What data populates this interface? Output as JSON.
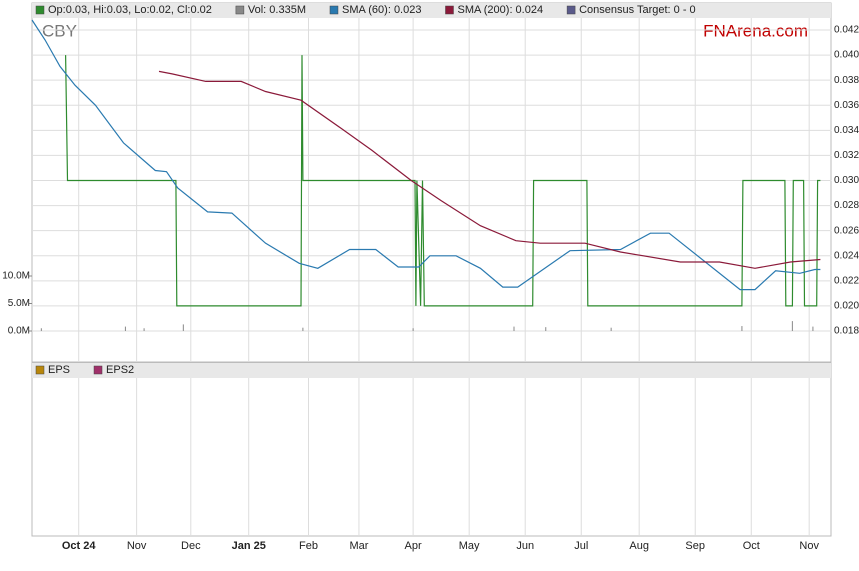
{
  "chart_data": [
    {
      "type": "line",
      "title": "CBY",
      "annotation": "FNArena.com",
      "ylim": [
        0.018,
        0.042
      ],
      "yticks": [
        0.018,
        {
          "value": 0.02,
          "label": "0.020"
        },
        0.022,
        0.024,
        0.026,
        0.028,
        {
          "value": 0.03,
          "label": "0.030"
        },
        0.032,
        0.034,
        0.036,
        0.038,
        {
          "value": 0.04,
          "label": "0.040"
        },
        0.042
      ],
      "y2lim": [
        0,
        10
      ],
      "y2ticks": [
        {
          "value": 0,
          "label": "0.0M"
        },
        {
          "value": 5,
          "label": "5.0M"
        },
        {
          "value": 10,
          "label": "10.0M"
        }
      ],
      "xlim": [
        0,
        428
      ],
      "grid": true,
      "series": [
        {
          "name": "Op:0.03, Hi:0.03, Lo:0.02, Cl:0.02",
          "color": "#2e8b2e",
          "x": [
            18,
            19,
            77,
            77.5,
            144,
            144.5,
            145,
            205,
            205.5,
            206,
            208,
            209,
            210,
            268,
            268.5,
            297,
            297.5,
            380,
            380.5,
            403,
            403.5,
            407,
            407.5,
            413,
            413.5,
            420,
            420.5,
            422
          ],
          "values": [
            0.04,
            0.03,
            0.03,
            0.02,
            0.02,
            0.04,
            0.03,
            0.03,
            0.02,
            0.03,
            0.02,
            0.03,
            0.02,
            0.02,
            0.03,
            0.03,
            0.02,
            0.02,
            0.03,
            0.03,
            0.02,
            0.02,
            0.03,
            0.03,
            0.02,
            0.02,
            0.03,
            0.03
          ]
        },
        {
          "name": "Vol: 0.335M",
          "color": "#888888",
          "axis": "y2",
          "x": [
            5,
            50,
            60,
            81,
            145,
            204,
            258,
            275,
            310,
            380,
            407,
            418
          ],
          "values": [
            0.5,
            0.8,
            0.5,
            1.2,
            0.6,
            0.5,
            0.8,
            0.7,
            0.6,
            0.9,
            1.8,
            0.8
          ]
        },
        {
          "name": "SMA (60): 0.023",
          "color": "#2a7ab0",
          "x": [
            0,
            7,
            15,
            23,
            34,
            49,
            66,
            72,
            78,
            94,
            107,
            125,
            143,
            153,
            170,
            184,
            196,
            207,
            213,
            227,
            240,
            252,
            260,
            288,
            315,
            331,
            341,
            379,
            387,
            398,
            411,
            419,
            422
          ],
          "values": [
            0.0428,
            0.0412,
            0.0391,
            0.0376,
            0.036,
            0.033,
            0.0308,
            0.0307,
            0.0294,
            0.0275,
            0.0274,
            0.025,
            0.0234,
            0.023,
            0.0245,
            0.0245,
            0.0231,
            0.0231,
            0.024,
            0.024,
            0.023,
            0.0215,
            0.0215,
            0.0244,
            0.0245,
            0.0258,
            0.0258,
            0.0213,
            0.0213,
            0.0228,
            0.0226,
            0.0229,
            0.0229
          ]
        },
        {
          "name": "SMA (200): 0.024",
          "color": "#8b1a3a",
          "x": [
            68,
            75,
            93,
            112,
            125,
            144,
            165,
            182,
            203,
            219,
            240,
            259,
            272,
            296,
            315,
            347,
            368,
            387,
            406,
            422
          ],
          "values": [
            0.0387,
            0.0385,
            0.0379,
            0.0379,
            0.0371,
            0.0364,
            0.0342,
            0.0324,
            0.03,
            0.0284,
            0.0264,
            0.0252,
            0.025,
            0.025,
            0.0243,
            0.0235,
            0.0235,
            0.023,
            0.0235,
            0.0237
          ]
        },
        {
          "name": "Consensus Target: 0 - 0",
          "color": "#5a5a8a",
          "x": [],
          "values": []
        }
      ]
    },
    {
      "type": "line",
      "xlim": [
        0,
        428
      ],
      "xticks": [
        {
          "value": 25,
          "label": "Oct 24"
        },
        {
          "value": 56,
          "label": "Nov"
        },
        {
          "value": 85,
          "label": "Dec"
        },
        {
          "value": 116,
          "label": "Jan 25"
        },
        {
          "value": 148,
          "label": "Feb"
        },
        {
          "value": 175,
          "label": "Mar"
        },
        {
          "value": 204,
          "label": "Apr"
        },
        {
          "value": 234,
          "label": "May"
        },
        {
          "value": 264,
          "label": "Jun"
        },
        {
          "value": 294,
          "label": "Jul"
        },
        {
          "value": 325,
          "label": "Aug"
        },
        {
          "value": 355,
          "label": "Sep"
        },
        {
          "value": 385,
          "label": "Oct"
        },
        {
          "value": 416,
          "label": "Nov"
        }
      ],
      "series": [
        {
          "name": "EPS",
          "color": "#b8860b",
          "x": [],
          "values": []
        },
        {
          "name": "EPS2",
          "color": "#a0306a",
          "x": [],
          "values": []
        }
      ]
    }
  ]
}
